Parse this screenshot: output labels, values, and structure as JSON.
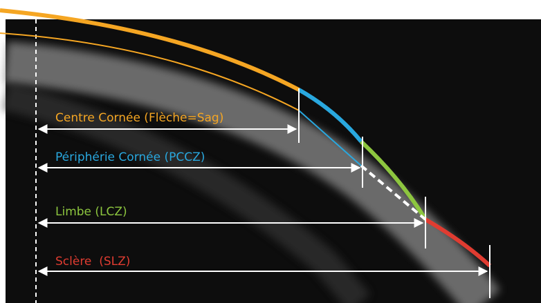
{
  "labels": {
    "center": "Centre Cornée (Flèche=Sag)",
    "periphery": "Périphérie Cornée (PCCZ)",
    "limbus": "Limbe (LCZ)",
    "sclera": "Sclère  (SLZ)"
  }
}
